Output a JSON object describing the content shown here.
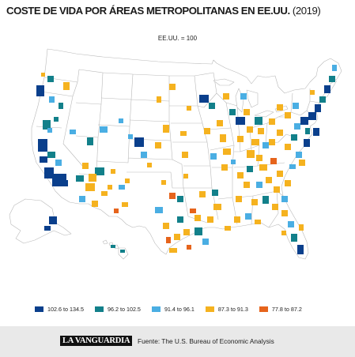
{
  "header": {
    "title": "COSTE DE VIDA POR ÁREAS METROPOLITANAS EN EE.UU.",
    "year": "(2019)",
    "subtitle": "EE.UU. = 100"
  },
  "legend": [
    {
      "label": "102.6 to 134.5",
      "color": "#0a3f8c"
    },
    {
      "label": "96.2 to 102.5",
      "color": "#12808a"
    },
    {
      "label": "91.4 to 96.1",
      "color": "#4aaee3"
    },
    {
      "label": "87.3 to 91.3",
      "color": "#f5b21f"
    },
    {
      "label": "77.8 to 87.2",
      "color": "#e6641c"
    }
  ],
  "map": {
    "land_color": "#ffffff",
    "border_color": "#b9b9b9"
  },
  "footer": {
    "logo": "LA VANGUARDIA",
    "source": "Fuente: The U.S. Bureau of Economic Analysis"
  }
}
